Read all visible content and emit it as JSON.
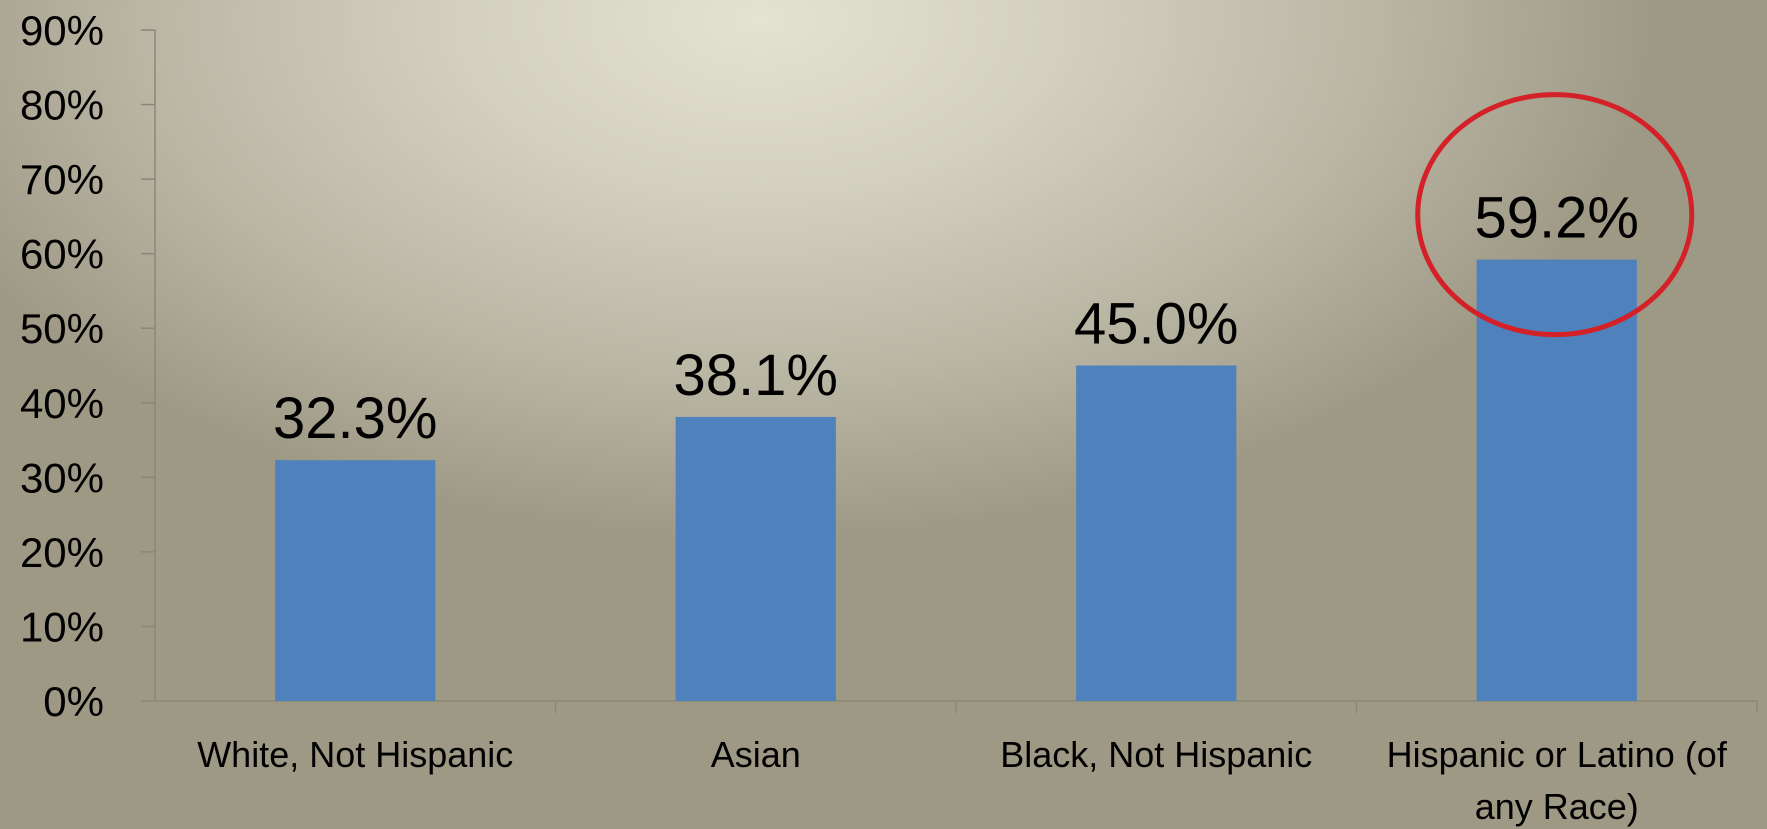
{
  "chart_data": {
    "type": "bar",
    "categories": [
      "White, Not Hispanic",
      "Asian",
      "Black, Not Hispanic",
      "Hispanic or Latino (of any Race)"
    ],
    "category_lines": [
      [
        "White, Not Hispanic"
      ],
      [
        "Asian"
      ],
      [
        "Black, Not Hispanic"
      ],
      [
        "Hispanic or Latino (of",
        "any Race)"
      ]
    ],
    "values": [
      32.3,
      38.1,
      45.0,
      59.2
    ],
    "data_labels": [
      "32.3%",
      "38.1%",
      "45.0%",
      "59.2%"
    ],
    "y_ticks": [
      0,
      10,
      20,
      30,
      40,
      50,
      60,
      70,
      80,
      90
    ],
    "y_tick_labels": [
      "0%",
      "10%",
      "20%",
      "30%",
      "40%",
      "50%",
      "60%",
      "70%",
      "80%",
      "90%"
    ],
    "ylim": [
      0,
      90
    ],
    "grid": false,
    "legend": "none",
    "highlighted_category": "Hispanic or Latino (of any Race)",
    "colors": {
      "bar": "#4f81bd",
      "axis": "#8a877a",
      "highlight_circle": "#d42027"
    }
  }
}
